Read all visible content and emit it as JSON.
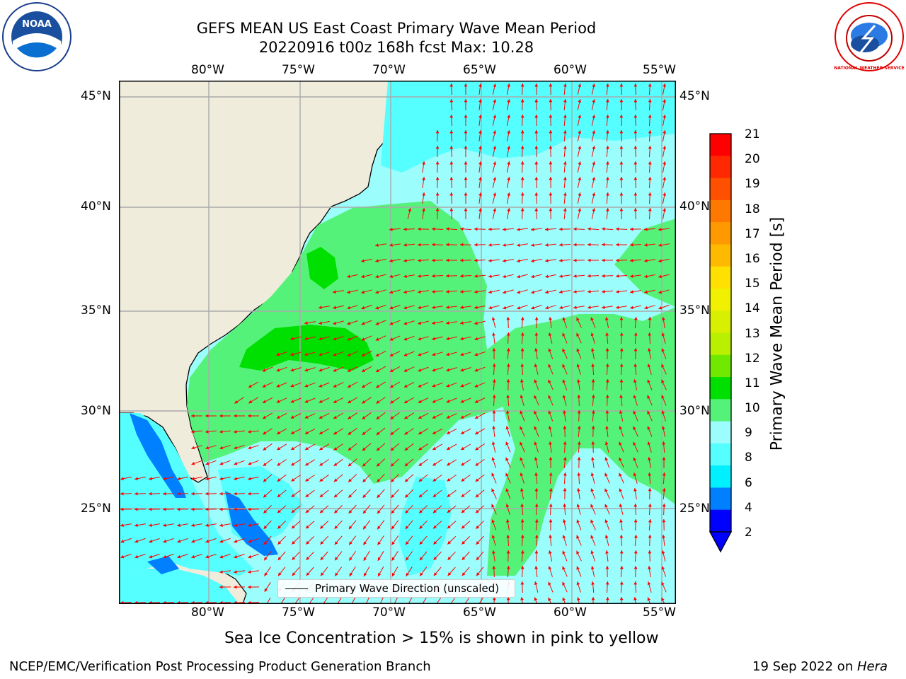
{
  "title": {
    "line1": "GEFS MEAN US East Coast Primary Wave Mean Period",
    "line2": "20220916 t00z 168h fcst   Max: 10.28"
  },
  "map": {
    "lon_ticks": [
      "80°W",
      "75°W",
      "70°W",
      "65°W",
      "60°W",
      "55°W"
    ],
    "lat_ticks": [
      "45°N",
      "40°N",
      "35°N",
      "30°N",
      "25°N"
    ],
    "land_color": "#efecdc",
    "grid_color": "#aaaaaa",
    "arrow_color": "#ff0000",
    "legend_label": "Primary Wave Direction (unscaled)"
  },
  "colorbar": {
    "label": "Primary Wave Mean Period [s]",
    "ticks": [
      "21",
      "20",
      "19",
      "18",
      "17",
      "16",
      "15",
      "14",
      "13",
      "12",
      "11",
      "10",
      "9",
      "8",
      "6",
      "4",
      "2"
    ],
    "colors_top_to_bottom": [
      "#ff0000",
      "#ff2800",
      "#ff5000",
      "#ff7800",
      "#ff9900",
      "#ffb900",
      "#ffe000",
      "#f0f000",
      "#d8f000",
      "#b8f000",
      "#70e800",
      "#00e000",
      "#55f27a",
      "#9cfdfd",
      "#55ffff",
      "#00f0ff",
      "#0080ff",
      "#0000ff"
    ]
  },
  "caption": "Sea Ice Concentration > 15% is shown in pink to yellow",
  "footer": {
    "left": "NCEP/EMC/Verification Post Processing Product Generation Branch",
    "right_date": "19 Sep 2022 on",
    "right_host": "Hera"
  },
  "logos": {
    "noaa": "NOAA",
    "nws": "NATIONAL WEATHER SERVICE"
  }
}
